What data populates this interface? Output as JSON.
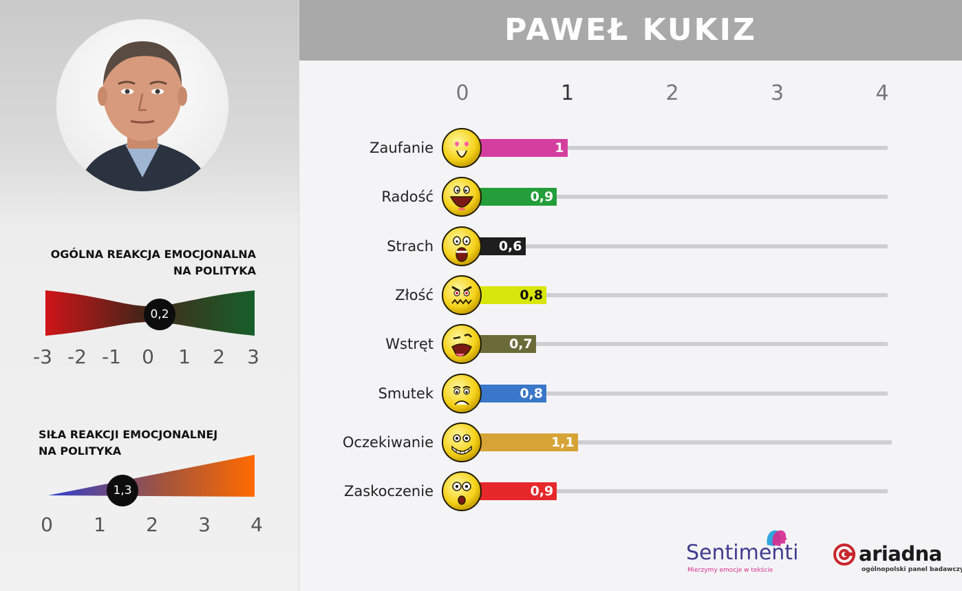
{
  "header": {
    "title": "PAWEŁ KUKIZ",
    "background": "#a9a9a9"
  },
  "left_panel": {
    "overall_reaction": {
      "title_line1": "OGÓLNA REAKCJA EMOCJONALNA",
      "title_line2": "NA POLITYKA",
      "value_label": "0,2",
      "value": 0.2,
      "ticks": [
        "-3",
        "-2",
        "-1",
        "0",
        "1",
        "2",
        "3"
      ],
      "range": [
        -3,
        3
      ],
      "colors": {
        "negative": "#d01419",
        "neutral": "#4a2418",
        "positive": "#16602a"
      }
    },
    "reaction_strength": {
      "title_line1": "SIŁA REAKCJI EMOCJONALNEJ",
      "title_line2": "NA POLITYKA",
      "value_label": "1,3",
      "value": 1.3,
      "ticks": [
        "0",
        "1",
        "2",
        "3",
        "4"
      ],
      "range": [
        0,
        4
      ],
      "colors": {
        "low": "#2f3fd0",
        "high": "#ff6a00"
      }
    }
  },
  "chart_data": {
    "type": "bar",
    "orientation": "horizontal",
    "title": "PAWEŁ KUKIZ",
    "xlim": [
      0,
      4
    ],
    "x_ticks": [
      "0",
      "1",
      "2",
      "3",
      "4"
    ],
    "categories": [
      "Zaufanie",
      "Radość",
      "Strach",
      "Złość",
      "Wstręt",
      "Smutek",
      "Oczekiwanie",
      "Zaskoczenie"
    ],
    "values": [
      1.0,
      0.9,
      0.6,
      0.8,
      0.7,
      0.8,
      1.1,
      0.9
    ],
    "value_labels": [
      "1",
      "0,9",
      "0,6",
      "0,8",
      "0,7",
      "0,8",
      "1,1",
      "0,9"
    ],
    "colors": [
      "#d43f9f",
      "#239e3a",
      "#1e1e1e",
      "#d9e60c",
      "#6b6b3a",
      "#3a76c9",
      "#d6a336",
      "#e6282a"
    ],
    "value_label_colors": [
      "#ffffff",
      "#ffffff",
      "#ffffff",
      "#111111",
      "#ffffff",
      "#ffffff",
      "#ffffff",
      "#ffffff"
    ],
    "icons": [
      "emoji-trust-icon",
      "emoji-joy-icon",
      "emoji-fear-icon",
      "emoji-anger-icon",
      "emoji-disgust-icon",
      "emoji-sadness-icon",
      "emoji-anticipation-icon",
      "emoji-surprise-icon"
    ],
    "grid": false
  },
  "logos": {
    "sentimenti": {
      "name": "Sentimenti",
      "tagline": "Mierzymy emocje w tekście",
      "color": "#3f3c8f",
      "accent": "#d62d8f"
    },
    "ariadna": {
      "name": "ariadna",
      "tagline": "ogólnopolski panel badawczy",
      "accent": "#c8252b"
    }
  }
}
